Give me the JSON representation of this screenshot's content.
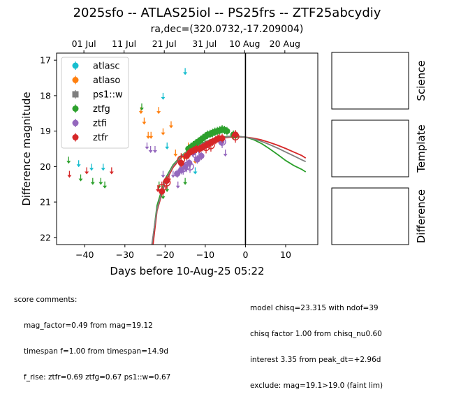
{
  "title": "2025sfo -- ATLAS25iol -- PS25frs -- ZTF25abcydiy",
  "subtitle": "ra,dec=(320.0732,-17.209004)",
  "panels": [
    {
      "id": "science",
      "label": "Science"
    },
    {
      "id": "template",
      "label": "Template"
    },
    {
      "id": "difference",
      "label": "Difference"
    }
  ],
  "comments_left": {
    "header": "score comments:",
    "lines": [
      "mag_factor=0.49 from mag=19.12",
      "timespan f=1.00 from timespan=14.9d",
      "f_rise: ztfr=0.69 ztfg=0.67 ps1::w=0.67"
    ]
  },
  "comments_right": {
    "lines": [
      "model chisq=23.315 with ndof=39",
      "chisq factor 1.00 from chisq_nu0.60",
      "interest 3.35 from peak_dt=+2.96d",
      "exclude: mag=19.1>19.0 (faint lim)"
    ]
  },
  "chart_data": {
    "type": "scatter",
    "xlabel": "Days before 10-Aug-25 05:22",
    "ylabel": "Difference magnitude",
    "xlim": [
      -47,
      18
    ],
    "ylim": [
      22.2,
      16.8
    ],
    "y_inverted": true,
    "xticks": [
      -40,
      -30,
      -20,
      -10,
      0,
      10
    ],
    "yticks": [
      17,
      18,
      19,
      20,
      21,
      22
    ],
    "top_axis_ticks": [
      {
        "label": "01 Jul",
        "x": -40.2
      },
      {
        "label": "11 Jul",
        "x": -30.2
      },
      {
        "label": "21 Jul",
        "x": -20.2
      },
      {
        "label": "31 Jul",
        "x": -10.2
      },
      {
        "label": "10 Aug",
        "x": -0.2
      },
      {
        "label": "20 Aug",
        "x": 9.8
      }
    ],
    "vline_x": 0,
    "legend": {
      "placement": "upper-left",
      "entries": [
        "atlasc",
        "atlaso",
        "ps1::w",
        "ztfg",
        "ztfi",
        "ztfr"
      ]
    },
    "colors": {
      "atlasc": "#17becf",
      "atlaso": "#ff7f0e",
      "ps1::w": "#7f7f7f",
      "ztfg": "#2ca02c",
      "ztfi": "#9467bd",
      "ztfr": "#d62728"
    },
    "series": [
      {
        "name": "atlasc",
        "detections": [],
        "upper_limits": [
          [
            -41.5,
            19.9
          ],
          [
            -38.3,
            20.0
          ],
          [
            -35.4,
            20.0
          ],
          [
            -20.5,
            18.0
          ],
          [
            -19.5,
            19.4
          ],
          [
            -15.0,
            17.3
          ],
          [
            -12.5,
            20.1
          ]
        ]
      },
      {
        "name": "atlaso",
        "detections": [],
        "upper_limits": [
          [
            -26.0,
            18.4
          ],
          [
            -25.2,
            18.7
          ],
          [
            -24.2,
            19.1
          ],
          [
            -23.5,
            19.1
          ],
          [
            -21.6,
            18.4
          ],
          [
            -20.5,
            19.0
          ],
          [
            -18.5,
            18.8
          ],
          [
            -17.4,
            19.6
          ],
          [
            -16.0,
            19.9
          ],
          [
            -15.2,
            19.7
          ],
          [
            -14.2,
            19.4
          ],
          [
            -13.5,
            19.5
          ],
          [
            -12.5,
            19.8
          ],
          [
            -11.0,
            19.7
          ]
        ]
      },
      {
        "name": "ps1::w",
        "detections": [],
        "upper_limits": []
      },
      {
        "name": "ztfg",
        "detections": [
          [
            -14.2,
            19.5
          ],
          [
            -13.6,
            19.45
          ],
          [
            -13.0,
            19.4
          ],
          [
            -12.4,
            19.35
          ],
          [
            -11.8,
            19.3
          ],
          [
            -11.2,
            19.25
          ],
          [
            -10.6,
            19.2
          ],
          [
            -10.0,
            19.15
          ],
          [
            -9.4,
            19.1
          ],
          [
            -8.8,
            19.08
          ],
          [
            -8.2,
            19.05
          ],
          [
            -7.6,
            19.02
          ],
          [
            -7.0,
            19.0
          ],
          [
            -6.4,
            18.98
          ],
          [
            -5.8,
            18.95
          ],
          [
            -5.2,
            18.97
          ],
          [
            -4.6,
            19.0
          ],
          [
            -3.0,
            19.1
          ],
          [
            -2.5,
            19.12
          ]
        ],
        "upper_limits": [
          [
            -44.0,
            19.8
          ],
          [
            -41.0,
            20.3
          ],
          [
            -38.0,
            20.4
          ],
          [
            -36.0,
            20.4
          ],
          [
            -35.0,
            20.5
          ],
          [
            -25.8,
            18.3
          ],
          [
            -21.5,
            20.5
          ],
          [
            -20.5,
            20.8
          ],
          [
            -19.5,
            20.6
          ],
          [
            -15.0,
            20.4
          ]
        ]
      },
      {
        "name": "ztfi",
        "detections": [
          [
            -17.0,
            20.2
          ],
          [
            -16.0,
            20.1
          ],
          [
            -15.0,
            20.0
          ],
          [
            -14.0,
            19.9
          ],
          [
            -13.0,
            19.6
          ],
          [
            -12.0,
            19.8
          ],
          [
            -11.0,
            19.7
          ],
          [
            -6.0,
            19.3
          ]
        ],
        "open_markers": [
          [
            -15.5,
            20.05
          ],
          [
            -14.6,
            19.98
          ],
          [
            -13.8,
            20.0
          ],
          [
            -12.4,
            19.65
          ],
          [
            -5.8,
            19.3
          ]
        ],
        "upper_limits": [
          [
            -24.5,
            19.4
          ],
          [
            -23.6,
            19.5
          ],
          [
            -22.5,
            19.5
          ],
          [
            -20.5,
            20.2
          ],
          [
            -18.0,
            20.2
          ],
          [
            -16.8,
            20.5
          ],
          [
            -5.0,
            19.6
          ]
        ]
      },
      {
        "name": "ztfr",
        "detections": [
          [
            -20.8,
            20.7
          ],
          [
            -19.6,
            20.4
          ],
          [
            -16.0,
            19.9
          ],
          [
            -14.6,
            19.7
          ],
          [
            -13.8,
            19.6
          ],
          [
            -13.0,
            19.55
          ],
          [
            -12.2,
            19.5
          ],
          [
            -11.4,
            19.5
          ],
          [
            -10.6,
            19.45
          ],
          [
            -9.8,
            19.4
          ],
          [
            -9.0,
            19.35
          ],
          [
            -8.2,
            19.3
          ],
          [
            -7.4,
            19.25
          ],
          [
            -6.6,
            19.2
          ],
          [
            -5.8,
            19.2
          ],
          [
            -2.5,
            19.1
          ]
        ],
        "open_markers": [
          [
            -20.8,
            20.6
          ],
          [
            -19.6,
            20.45
          ],
          [
            -16.0,
            19.8
          ],
          [
            -9.8,
            19.45
          ],
          [
            -8.6,
            19.4
          ],
          [
            -2.5,
            19.15
          ]
        ],
        "upper_limits": [
          [
            -43.8,
            20.2
          ],
          [
            -39.5,
            20.1
          ],
          [
            -33.3,
            20.1
          ],
          [
            -21.8,
            20.6
          ],
          [
            -19.0,
            20.3
          ]
        ]
      }
    ],
    "model_curves": [
      {
        "band": "ztfg",
        "color": "#2ca02c",
        "points": [
          [
            -23.2,
            22.2
          ],
          [
            -22,
            21.1
          ],
          [
            -20,
            20.35
          ],
          [
            -18,
            19.95
          ],
          [
            -16,
            19.7
          ],
          [
            -14,
            19.52
          ],
          [
            -12,
            19.4
          ],
          [
            -10,
            19.3
          ],
          [
            -8,
            19.22
          ],
          [
            -6,
            19.17
          ],
          [
            -4,
            19.15
          ],
          [
            -2,
            19.15
          ],
          [
            0,
            19.17
          ],
          [
            2,
            19.24
          ],
          [
            4,
            19.35
          ],
          [
            6,
            19.5
          ],
          [
            8,
            19.66
          ],
          [
            10,
            19.83
          ],
          [
            12,
            19.97
          ],
          [
            14,
            20.08
          ],
          [
            15,
            20.15
          ]
        ]
      },
      {
        "band": "ztfr",
        "color": "#d62728",
        "points": [
          [
            -23.0,
            22.2
          ],
          [
            -22,
            21.25
          ],
          [
            -20,
            20.45
          ],
          [
            -18,
            20.02
          ],
          [
            -16,
            19.75
          ],
          [
            -14,
            19.55
          ],
          [
            -12,
            19.42
          ],
          [
            -10,
            19.33
          ],
          [
            -8,
            19.25
          ],
          [
            -6,
            19.2
          ],
          [
            -4,
            19.17
          ],
          [
            -2,
            19.16
          ],
          [
            0,
            19.17
          ],
          [
            2,
            19.2
          ],
          [
            4,
            19.25
          ],
          [
            6,
            19.32
          ],
          [
            8,
            19.4
          ],
          [
            10,
            19.49
          ],
          [
            12,
            19.59
          ],
          [
            14,
            19.69
          ],
          [
            15,
            19.76
          ]
        ]
      },
      {
        "band": "ztfi",
        "color": "#7f7f7f",
        "points": [
          [
            -23.3,
            22.2
          ],
          [
            -22,
            21.2
          ],
          [
            -20,
            20.4
          ],
          [
            -18,
            19.98
          ],
          [
            -16,
            19.72
          ],
          [
            -14,
            19.53
          ],
          [
            -12,
            19.41
          ],
          [
            -10,
            19.31
          ],
          [
            -8,
            19.23
          ],
          [
            -6,
            19.18
          ],
          [
            -4,
            19.16
          ],
          [
            -2,
            19.15
          ],
          [
            0,
            19.17
          ],
          [
            2,
            19.22
          ],
          [
            4,
            19.29
          ],
          [
            6,
            19.38
          ],
          [
            8,
            19.48
          ],
          [
            10,
            19.59
          ],
          [
            12,
            19.7
          ],
          [
            14,
            19.81
          ],
          [
            15,
            19.86
          ]
        ]
      }
    ]
  }
}
